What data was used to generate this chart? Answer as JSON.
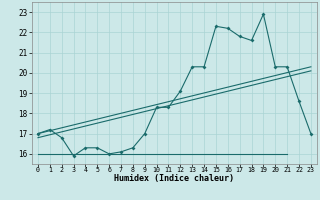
{
  "title": "",
  "xlabel": "Humidex (Indice chaleur)",
  "bg_color": "#cce8e8",
  "line_color": "#1a6b6b",
  "grid_color": "#aad4d4",
  "xlim": [
    -0.5,
    23.5
  ],
  "ylim": [
    15.5,
    23.5
  ],
  "xticks": [
    0,
    1,
    2,
    3,
    4,
    5,
    6,
    7,
    8,
    9,
    10,
    11,
    12,
    13,
    14,
    15,
    16,
    17,
    18,
    19,
    20,
    21,
    22,
    23
  ],
  "yticks": [
    16,
    17,
    18,
    19,
    20,
    21,
    22,
    23
  ],
  "series1_x": [
    0,
    1,
    2,
    3,
    4,
    5,
    6,
    7,
    8,
    9,
    10,
    11,
    12,
    13,
    14,
    15,
    16,
    17,
    18,
    19,
    20,
    21,
    22,
    23
  ],
  "series1_y": [
    17.0,
    17.2,
    16.8,
    15.9,
    16.3,
    16.3,
    16.0,
    16.1,
    16.3,
    17.0,
    18.3,
    18.3,
    19.1,
    20.3,
    20.3,
    22.3,
    22.2,
    21.8,
    21.6,
    22.9,
    20.3,
    20.3,
    18.6,
    17.0
  ],
  "series2_x": [
    0,
    23
  ],
  "series2_y": [
    17.0,
    20.3
  ],
  "series3_x": [
    0,
    21
  ],
  "series3_y": [
    16.0,
    16.0
  ],
  "series4_x": [
    0,
    23
  ],
  "series4_y": [
    16.8,
    20.1
  ]
}
